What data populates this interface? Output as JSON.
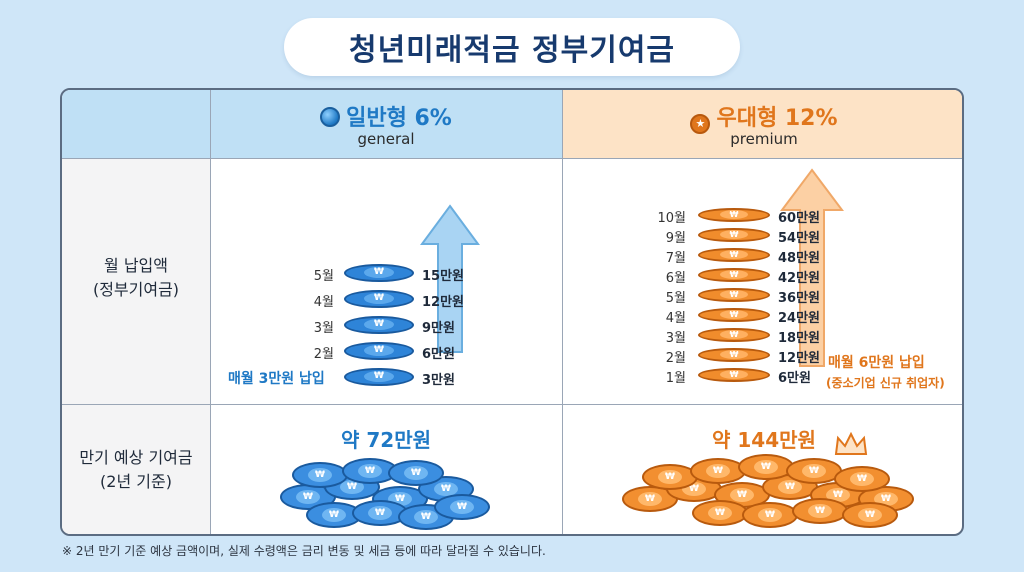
{
  "title": "청년미래적금 정부기여금",
  "colors": {
    "general": "#1f79c5",
    "premium": "#e0761c",
    "background": "#cfe6f8"
  },
  "general": {
    "title": "일반형 6%",
    "subtitle": "general",
    "icon": "blue-coin-icon",
    "stack": [
      {
        "month": "5월",
        "amount": "15만원"
      },
      {
        "month": "4월",
        "amount": "12만원"
      },
      {
        "month": "3월",
        "amount": "9만원"
      },
      {
        "month": "2월",
        "amount": "6만원"
      },
      {
        "month": "",
        "amount": "3만원"
      }
    ],
    "monthly_note": "매월 3만원 납입",
    "total": "약 72만원"
  },
  "premium": {
    "title": "우대형 12%",
    "subtitle": "premium",
    "icon": "star-badge-icon",
    "stack": [
      {
        "month": "10월",
        "amount": "60만원"
      },
      {
        "month": "9월",
        "amount": "54만원"
      },
      {
        "month": "7월",
        "amount": "48만원"
      },
      {
        "month": "6월",
        "amount": "42만원"
      },
      {
        "month": "5월",
        "amount": "36만원"
      },
      {
        "month": "4월",
        "amount": "24만원"
      },
      {
        "month": "3월",
        "amount": "18만원"
      },
      {
        "month": "2월",
        "amount": "12만원"
      },
      {
        "month": "1월",
        "amount": "6만원"
      }
    ],
    "monthly_note": "매월 6만원 납입",
    "monthly_note_sub": "(중소기업 신규 취업자)",
    "total": "약 144만원"
  },
  "rows": {
    "monthly_line1": "월 납입액",
    "monthly_line2": "(정부기여금)",
    "total_line1": "만기 예상 기여금",
    "total_line2": "(2년 기준)"
  },
  "coin_symbol": "₩",
  "footnote": "※ 2년 만기 기준 예상 금액이며, 실제 수령액은 금리 변동 및 세금 등에 따라 달라질 수 있습니다."
}
